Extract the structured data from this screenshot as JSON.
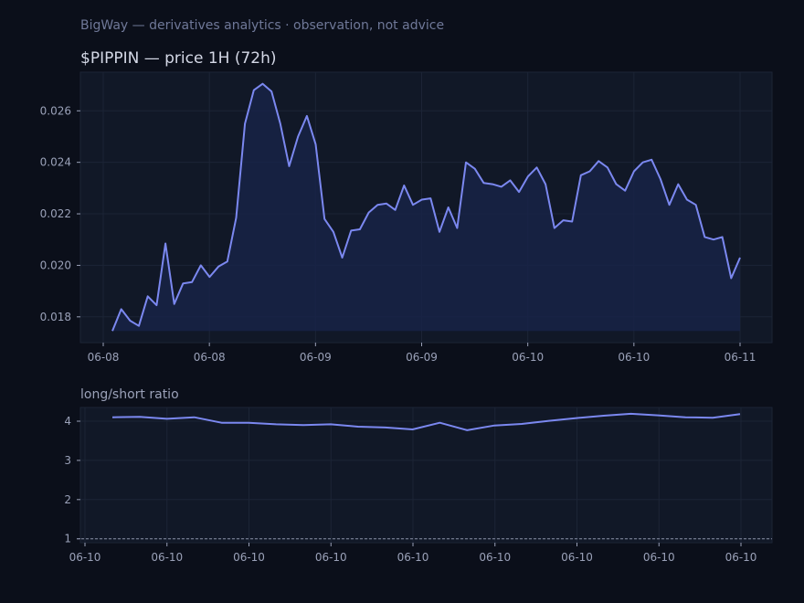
{
  "header": {
    "subtitle": "BigWay — derivatives analytics · observation, not advice",
    "title": "$PIPPIN — price 1H (72h)"
  },
  "colors": {
    "background": "#0b0f1a",
    "panel": "#111827",
    "line": "#7b88f0",
    "area": "#182346",
    "grid": "#1c2436",
    "text": "#9aa1b8"
  },
  "chart_data": [
    {
      "type": "area",
      "title": "$PIPPIN — price 1H (72h)",
      "ylim": [
        0.017,
        0.0275
      ],
      "y_ticks": [
        "0.018",
        "0.020",
        "0.022",
        "0.024",
        "0.026"
      ],
      "y_tick_values": [
        0.018,
        0.02,
        0.022,
        0.024,
        0.026
      ],
      "x_ticks": [
        "06-08",
        "06-08",
        "06-09",
        "06-09",
        "06-10",
        "06-10",
        "06-11"
      ],
      "grid": true,
      "series": [
        {
          "values": [
            0.01745,
            0.0183,
            0.01785,
            0.01765,
            0.0188,
            0.01845,
            0.02085,
            0.0185,
            0.0193,
            0.01935,
            0.02,
            0.01955,
            0.01995,
            0.02015,
            0.02185,
            0.0255,
            0.0268,
            0.02705,
            0.02675,
            0.0255,
            0.02385,
            0.025,
            0.0258,
            0.0247,
            0.0218,
            0.0213,
            0.0203,
            0.02135,
            0.0214,
            0.02205,
            0.02235,
            0.0224,
            0.02215,
            0.0231,
            0.02235,
            0.02255,
            0.0226,
            0.0213,
            0.02225,
            0.02145,
            0.024,
            0.02375,
            0.0232,
            0.02315,
            0.02305,
            0.0233,
            0.02285,
            0.02345,
            0.0238,
            0.02315,
            0.02145,
            0.02175,
            0.0217,
            0.0235,
            0.02365,
            0.02405,
            0.0238,
            0.02315,
            0.0229,
            0.02365,
            0.024,
            0.0241,
            0.02335,
            0.02235,
            0.02315,
            0.02255,
            0.02235,
            0.0211,
            0.021,
            0.0211,
            0.0195,
            0.0203
          ]
        }
      ]
    },
    {
      "type": "line",
      "title": "long/short ratio",
      "ylim": [
        0.9,
        4.35
      ],
      "y_ticks": [
        "1",
        "2",
        "3",
        "4"
      ],
      "y_tick_values": [
        1,
        2,
        3,
        4
      ],
      "x_ticks": [
        "06-10",
        "06-10",
        "06-10",
        "06-10",
        "06-10",
        "06-10",
        "06-10",
        "06-10",
        "06-10"
      ],
      "reference_line": 1,
      "grid": true,
      "series": [
        {
          "values": [
            4.1,
            4.11,
            4.06,
            4.1,
            3.96,
            3.96,
            3.92,
            3.9,
            3.92,
            3.86,
            3.84,
            3.79,
            3.96,
            3.77,
            3.89,
            3.93,
            4.01,
            4.08,
            4.14,
            4.19,
            4.15,
            4.1,
            4.09,
            4.18
          ]
        }
      ]
    }
  ],
  "lower_panel": {
    "label": "long/short ratio"
  }
}
